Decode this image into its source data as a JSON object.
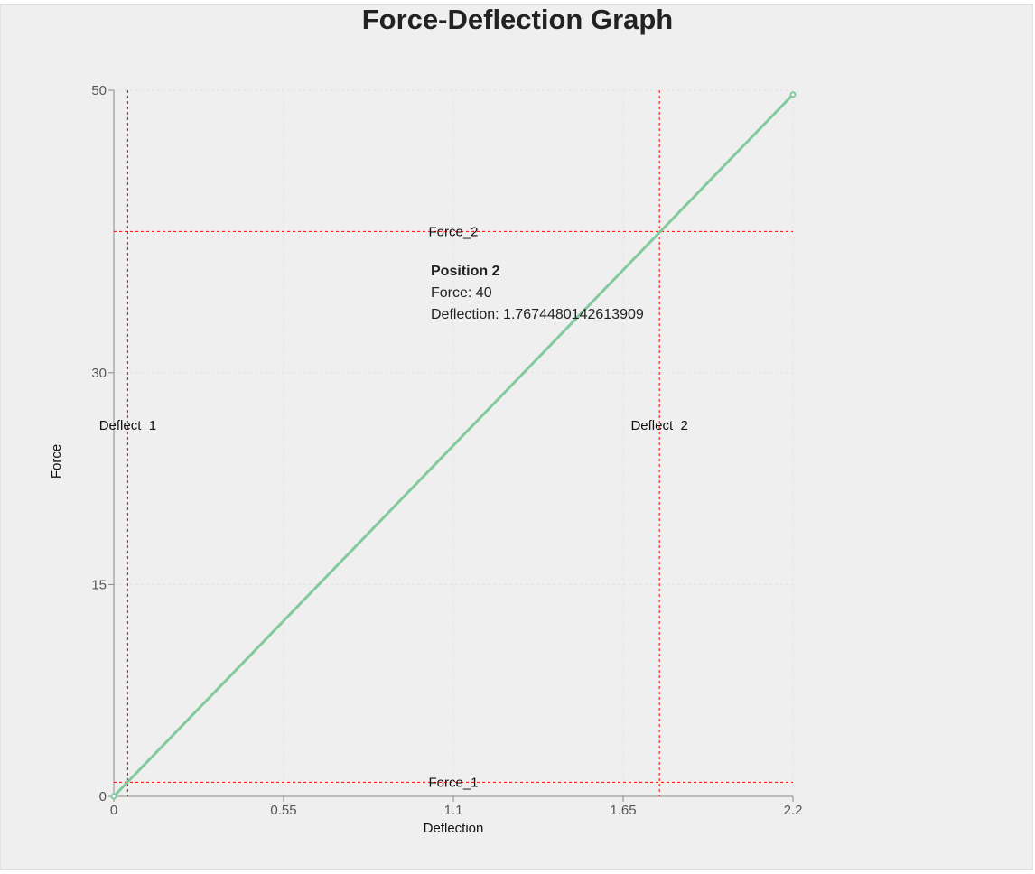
{
  "chart_data": {
    "type": "line",
    "title": "Force-Deflection Graph",
    "xlabel": "Deflection",
    "ylabel": "Force",
    "xlim": [
      0,
      2.2
    ],
    "ylim": [
      0,
      50
    ],
    "xticks": [
      0,
      0.55,
      1.1,
      1.65,
      2.2
    ],
    "xtick_labels": [
      "0",
      "0.55",
      "1.1",
      "1.65",
      "2.2"
    ],
    "yticks": [
      0,
      15,
      30,
      50
    ],
    "ytick_labels": [
      "0",
      "15",
      "30",
      "50"
    ],
    "grid": true,
    "series": [
      {
        "x": [
          0,
          2.2
        ],
        "y": [
          0,
          49.7
        ],
        "color": "#82ca9d"
      }
    ],
    "reference_lines": [
      {
        "axis": "y",
        "value": 1,
        "label": "Force_1",
        "color": "#ff0000"
      },
      {
        "axis": "y",
        "value": 40,
        "label": "Force_2",
        "color": "#ff0000"
      },
      {
        "axis": "x",
        "value": 0.045,
        "label": "Deflect_1",
        "color": "#ff0000"
      },
      {
        "axis": "x",
        "value": 1.7674480142613909,
        "label": "Deflect_2",
        "color": "#ff0000"
      }
    ]
  },
  "tooltip": {
    "title": "Position 2",
    "force_text": "Force: 40",
    "deflection_text": "Deflection: 1.7674480142613909"
  }
}
